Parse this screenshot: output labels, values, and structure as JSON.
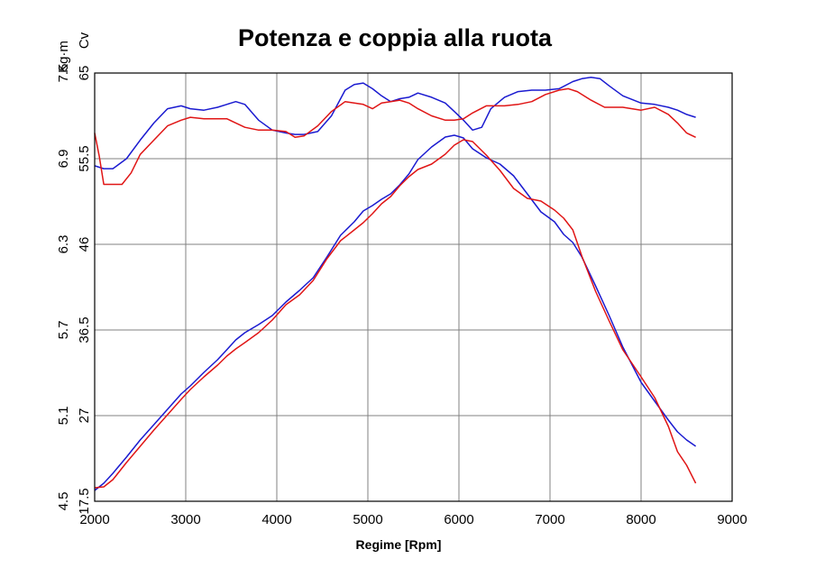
{
  "chart_data": {
    "type": "line",
    "title": "Potenza e coppia alla ruota",
    "xlabel": "Regime [Rpm]",
    "y_axes": {
      "torque": {
        "label": "Kg·m",
        "ticks": [
          "4.5",
          "5.1",
          "5.7",
          "6.3",
          "6.9",
          "7.5"
        ],
        "range": [
          4.5,
          7.5
        ]
      },
      "power": {
        "label": "Cv",
        "ticks": [
          "17.5",
          "27",
          "36.5",
          "46",
          "55.5",
          "65"
        ],
        "range": [
          17.5,
          65
        ]
      }
    },
    "x_ticks": [
      "2000",
      "3000",
      "4000",
      "5000",
      "6000",
      "7000",
      "8000",
      "9000"
    ],
    "xlim": [
      2000,
      9000
    ],
    "grid": true,
    "colors": {
      "blue": "#1a1ad0",
      "red": "#e01515",
      "grid": "#808080"
    },
    "series": [
      {
        "axis": "torque",
        "color": "#1a1ad0",
        "x": [
          2000,
          2100,
          2200,
          2350,
          2500,
          2650,
          2800,
          2950,
          3050,
          3200,
          3350,
          3450,
          3550,
          3650,
          3800,
          3950,
          4100,
          4200,
          4300,
          4450,
          4600,
          4750,
          4850,
          4950,
          5050,
          5150,
          5250,
          5350,
          5450,
          5550,
          5700,
          5850,
          5950,
          6050,
          6150,
          6250,
          6350,
          6500,
          6650,
          6800,
          6950,
          7100,
          7250,
          7350,
          7450,
          7550,
          7650,
          7800,
          8000,
          8150,
          8300,
          8400,
          8500,
          8600
        ],
        "values": [
          6.85,
          6.83,
          6.83,
          6.9,
          7.03,
          7.15,
          7.25,
          7.27,
          7.25,
          7.24,
          7.26,
          7.28,
          7.3,
          7.28,
          7.17,
          7.1,
          7.08,
          7.07,
          7.07,
          7.09,
          7.2,
          7.38,
          7.42,
          7.43,
          7.39,
          7.34,
          7.3,
          7.32,
          7.33,
          7.36,
          7.33,
          7.29,
          7.23,
          7.17,
          7.1,
          7.12,
          7.25,
          7.33,
          7.37,
          7.38,
          7.38,
          7.39,
          7.44,
          7.46,
          7.47,
          7.46,
          7.41,
          7.34,
          7.29,
          7.28,
          7.26,
          7.24,
          7.21,
          7.19
        ]
      },
      {
        "axis": "torque",
        "color": "#e01515",
        "x": [
          2000,
          2050,
          2100,
          2200,
          2300,
          2400,
          2500,
          2650,
          2800,
          2950,
          3050,
          3200,
          3350,
          3450,
          3550,
          3650,
          3800,
          3950,
          4100,
          4200,
          4300,
          4450,
          4600,
          4750,
          4850,
          4950,
          5050,
          5150,
          5250,
          5350,
          5450,
          5550,
          5700,
          5850,
          5950,
          6050,
          6150,
          6300,
          6500,
          6650,
          6800,
          6950,
          7100,
          7200,
          7300,
          7450,
          7600,
          7800,
          8000,
          8150,
          8300,
          8400,
          8500,
          8600
        ],
        "values": [
          7.08,
          6.92,
          6.72,
          6.72,
          6.72,
          6.8,
          6.93,
          7.03,
          7.13,
          7.17,
          7.19,
          7.18,
          7.18,
          7.18,
          7.15,
          7.12,
          7.1,
          7.1,
          7.09,
          7.05,
          7.06,
          7.13,
          7.23,
          7.3,
          7.29,
          7.28,
          7.25,
          7.29,
          7.3,
          7.31,
          7.29,
          7.25,
          7.2,
          7.17,
          7.17,
          7.18,
          7.22,
          7.27,
          7.27,
          7.28,
          7.3,
          7.35,
          7.38,
          7.39,
          7.37,
          7.31,
          7.26,
          7.26,
          7.24,
          7.26,
          7.21,
          7.15,
          7.08,
          7.05
        ]
      },
      {
        "axis": "power",
        "color": "#1a1ad0",
        "x": [
          2000,
          2100,
          2200,
          2350,
          2500,
          2650,
          2800,
          2950,
          3050,
          3200,
          3350,
          3450,
          3550,
          3650,
          3800,
          3950,
          4100,
          4250,
          4400,
          4550,
          4700,
          4850,
          4950,
          5050,
          5150,
          5250,
          5350,
          5450,
          5550,
          5700,
          5850,
          5950,
          6050,
          6150,
          6300,
          6450,
          6600,
          6750,
          6900,
          7050,
          7150,
          7250,
          7350,
          7500,
          7650,
          7800,
          8000,
          8150,
          8300,
          8400,
          8500,
          8600
        ],
        "values": [
          18.7,
          19.5,
          20.6,
          22.4,
          24.3,
          26.0,
          27.7,
          29.4,
          30.3,
          31.8,
          33.2,
          34.3,
          35.4,
          36.2,
          37.1,
          38.1,
          39.6,
          40.9,
          42.3,
          44.6,
          47.0,
          48.5,
          49.7,
          50.3,
          51.0,
          51.6,
          52.6,
          53.8,
          55.4,
          56.8,
          57.9,
          58.1,
          57.8,
          56.6,
          55.6,
          54.9,
          53.6,
          51.6,
          49.6,
          48.5,
          47.1,
          46.2,
          44.6,
          41.4,
          38.1,
          34.6,
          30.7,
          28.6,
          26.5,
          25.2,
          24.3,
          23.6
        ]
      },
      {
        "axis": "power",
        "color": "#e01515",
        "x": [
          2000,
          2100,
          2200,
          2350,
          2500,
          2650,
          2800,
          2950,
          3050,
          3200,
          3350,
          3450,
          3550,
          3650,
          3800,
          3950,
          4100,
          4250,
          4400,
          4550,
          4700,
          4850,
          4950,
          5050,
          5150,
          5250,
          5350,
          5450,
          5550,
          5700,
          5850,
          5950,
          6050,
          6150,
          6300,
          6450,
          6600,
          6750,
          6900,
          7050,
          7150,
          7250,
          7350,
          7500,
          7650,
          7800,
          8000,
          8150,
          8300,
          8400,
          8500,
          8600
        ],
        "values": [
          19.0,
          19.1,
          19.9,
          21.8,
          23.6,
          25.4,
          27.1,
          28.8,
          29.9,
          31.3,
          32.6,
          33.6,
          34.4,
          35.1,
          36.2,
          37.6,
          39.3,
          40.4,
          42.0,
          44.4,
          46.4,
          47.6,
          48.4,
          49.4,
          50.5,
          51.3,
          52.5,
          53.5,
          54.3,
          54.9,
          56.0,
          57.0,
          57.6,
          57.4,
          55.9,
          54.2,
          52.2,
          51.1,
          50.8,
          49.8,
          48.9,
          47.6,
          44.7,
          40.8,
          37.5,
          34.3,
          31.3,
          29.0,
          25.8,
          23.0,
          21.5,
          19.5
        ]
      }
    ]
  }
}
